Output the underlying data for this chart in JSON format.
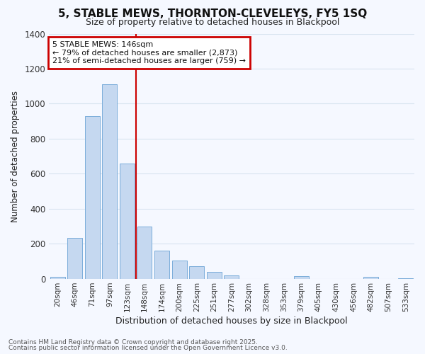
{
  "title": "5, STABLE MEWS, THORNTON-CLEVELEYS, FY5 1SQ",
  "subtitle": "Size of property relative to detached houses in Blackpool",
  "xlabel": "Distribution of detached houses by size in Blackpool",
  "ylabel": "Number of detached properties",
  "annotation_line1": "5 STABLE MEWS: 146sqm",
  "annotation_line2": "← 79% of detached houses are smaller (2,873)",
  "annotation_line3": "21% of semi-detached houses are larger (759) →",
  "categories": [
    "20sqm",
    "46sqm",
    "71sqm",
    "97sqm",
    "123sqm",
    "148sqm",
    "174sqm",
    "200sqm",
    "225sqm",
    "251sqm",
    "277sqm",
    "302sqm",
    "328sqm",
    "353sqm",
    "379sqm",
    "405sqm",
    "430sqm",
    "456sqm",
    "482sqm",
    "507sqm",
    "533sqm"
  ],
  "values": [
    12,
    235,
    930,
    1110,
    660,
    300,
    160,
    105,
    70,
    40,
    20,
    0,
    0,
    0,
    15,
    0,
    0,
    0,
    10,
    0,
    5
  ],
  "bar_color": "#c5d8f0",
  "bar_edge_color": "#7aadda",
  "marker_color": "#cc0000",
  "background_color": "#f5f8ff",
  "grid_color": "#d8e4f0",
  "annotation_box_color": "#cc0000",
  "ylim": [
    0,
    1400
  ],
  "yticks": [
    0,
    200,
    400,
    600,
    800,
    1000,
    1200,
    1400
  ],
  "footer_line1": "Contains HM Land Registry data © Crown copyright and database right 2025.",
  "footer_line2": "Contains public sector information licensed under the Open Government Licence v3.0."
}
